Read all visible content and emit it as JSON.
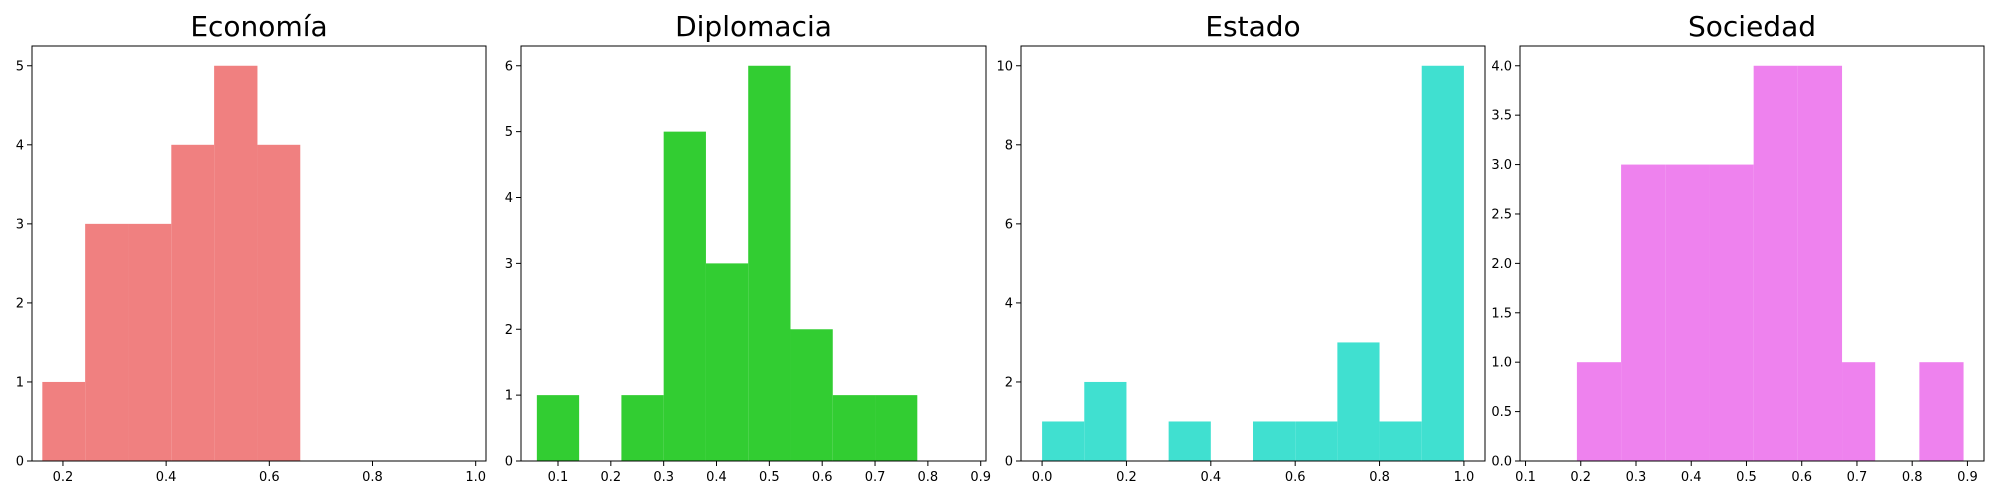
{
  "chart_data": [
    {
      "type": "bar",
      "title": "Economía",
      "color": "#f08080",
      "xlim": [
        0.14,
        1.02
      ],
      "ylim": [
        0,
        5.25
      ],
      "xticks": [
        "0.2",
        "0.4",
        "0.6",
        "0.8",
        "1.0"
      ],
      "xtick_values": [
        0.2,
        0.4,
        0.6,
        0.8,
        1.0
      ],
      "yticks": [
        "0",
        "1",
        "2",
        "3",
        "4",
        "5"
      ],
      "ytick_values": [
        0,
        1,
        2,
        3,
        4,
        5
      ],
      "bins": [
        {
          "x0": 0.16,
          "x1": 0.243,
          "count": 1
        },
        {
          "x0": 0.243,
          "x1": 0.327,
          "count": 3
        },
        {
          "x0": 0.327,
          "x1": 0.41,
          "count": 3
        },
        {
          "x0": 0.41,
          "x1": 0.493,
          "count": 4
        },
        {
          "x0": 0.493,
          "x1": 0.577,
          "count": 5
        },
        {
          "x0": 0.577,
          "x1": 0.66,
          "count": 4
        }
      ]
    },
    {
      "type": "bar",
      "title": "Diplomacia",
      "color": "#32cd32",
      "xlim": [
        0.03,
        0.91
      ],
      "ylim": [
        0,
        6.3
      ],
      "xticks": [
        "0.1",
        "0.2",
        "0.3",
        "0.4",
        "0.5",
        "0.6",
        "0.7",
        "0.8",
        "0.9"
      ],
      "xtick_values": [
        0.1,
        0.2,
        0.3,
        0.4,
        0.5,
        0.6,
        0.7,
        0.8,
        0.9
      ],
      "yticks": [
        "0",
        "1",
        "2",
        "3",
        "4",
        "5",
        "6"
      ],
      "ytick_values": [
        0,
        1,
        2,
        3,
        4,
        5,
        6
      ],
      "bins": [
        {
          "x0": 0.06,
          "x1": 0.14,
          "count": 1
        },
        {
          "x0": 0.14,
          "x1": 0.22,
          "count": 0
        },
        {
          "x0": 0.22,
          "x1": 0.3,
          "count": 1
        },
        {
          "x0": 0.3,
          "x1": 0.38,
          "count": 5
        },
        {
          "x0": 0.38,
          "x1": 0.46,
          "count": 3
        },
        {
          "x0": 0.46,
          "x1": 0.54,
          "count": 6
        },
        {
          "x0": 0.54,
          "x1": 0.62,
          "count": 2
        },
        {
          "x0": 0.62,
          "x1": 0.7,
          "count": 1
        },
        {
          "x0": 0.7,
          "x1": 0.78,
          "count": 1
        }
      ]
    },
    {
      "type": "bar",
      "title": "Estado",
      "color": "#40e0d0",
      "xlim": [
        -0.05,
        1.05
      ],
      "ylim": [
        0,
        10.5
      ],
      "xticks": [
        "0.0",
        "0.2",
        "0.4",
        "0.6",
        "0.8",
        "1.0"
      ],
      "xtick_values": [
        0.0,
        0.2,
        0.4,
        0.6,
        0.8,
        1.0
      ],
      "yticks": [
        "0",
        "2",
        "4",
        "6",
        "8",
        "10"
      ],
      "ytick_values": [
        0,
        2,
        4,
        6,
        8,
        10
      ],
      "bins": [
        {
          "x0": 0.0,
          "x1": 0.1,
          "count": 1
        },
        {
          "x0": 0.1,
          "x1": 0.2,
          "count": 2
        },
        {
          "x0": 0.2,
          "x1": 0.3,
          "count": 0
        },
        {
          "x0": 0.3,
          "x1": 0.4,
          "count": 1
        },
        {
          "x0": 0.4,
          "x1": 0.5,
          "count": 0
        },
        {
          "x0": 0.5,
          "x1": 0.6,
          "count": 1
        },
        {
          "x0": 0.6,
          "x1": 0.7,
          "count": 1
        },
        {
          "x0": 0.7,
          "x1": 0.8,
          "count": 3
        },
        {
          "x0": 0.8,
          "x1": 0.9,
          "count": 1
        },
        {
          "x0": 0.9,
          "x1": 1.0,
          "count": 10
        }
      ]
    },
    {
      "type": "bar",
      "title": "Sociedad",
      "color": "#ee82ee",
      "xlim": [
        0.09,
        0.93
      ],
      "ylim": [
        0,
        4.2
      ],
      "xticks": [
        "0.1",
        "0.2",
        "0.3",
        "0.4",
        "0.5",
        "0.6",
        "0.7",
        "0.8",
        "0.9"
      ],
      "xtick_values": [
        0.1,
        0.2,
        0.3,
        0.4,
        0.5,
        0.6,
        0.7,
        0.8,
        0.9
      ],
      "yticks": [
        "0.0",
        "0.5",
        "1.0",
        "1.5",
        "2.0",
        "2.5",
        "3.0",
        "3.5",
        "4.0"
      ],
      "ytick_values": [
        0.0,
        0.5,
        1.0,
        1.5,
        2.0,
        2.5,
        3.0,
        3.5,
        4.0
      ],
      "bins": [
        {
          "x0": 0.193,
          "x1": 0.273,
          "count": 1
        },
        {
          "x0": 0.273,
          "x1": 0.353,
          "count": 3
        },
        {
          "x0": 0.353,
          "x1": 0.433,
          "count": 3
        },
        {
          "x0": 0.433,
          "x1": 0.513,
          "count": 3
        },
        {
          "x0": 0.513,
          "x1": 0.593,
          "count": 4
        },
        {
          "x0": 0.593,
          "x1": 0.673,
          "count": 4
        },
        {
          "x0": 0.673,
          "x1": 0.733,
          "count": 1
        },
        {
          "x0": 0.733,
          "x1": 0.813,
          "count": 0
        },
        {
          "x0": 0.813,
          "x1": 0.893,
          "count": 1
        }
      ]
    }
  ]
}
